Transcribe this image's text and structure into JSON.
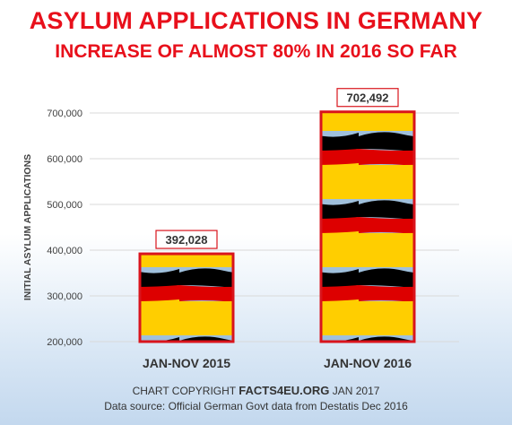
{
  "title": "ASYLUM APPLICATIONS IN GERMANY",
  "subtitle": "INCREASE OF ALMOST 80% IN 2016 SO FAR",
  "footer": {
    "copyright_prefix": "CHART COPYRIGHT",
    "brand": "FACTS4EU.ORG",
    "copyright_suffix": "JAN 2017",
    "source": "Data source: Official German Govt data from Destatis Dec 2016"
  },
  "colors": {
    "title": "#e8101b",
    "bar_border": "#d9141c",
    "flag_black": "#000000",
    "flag_red": "#dd0000",
    "flag_gold": "#ffce00"
  },
  "chart_data": {
    "type": "bar",
    "title": "ASYLUM APPLICATIONS IN GERMANY",
    "subtitle": "INCREASE OF ALMOST 80% IN 2016 SO FAR",
    "ylabel": "INITIAL ASYLUM APPLICATIONS",
    "xlabel": "",
    "categories": [
      "JAN-NOV 2015",
      "JAN-NOV 2016"
    ],
    "values": [
      392028,
      702492
    ],
    "value_labels": [
      "392,028",
      "702,492"
    ],
    "ylim": [
      200000,
      700000
    ],
    "yticks": [
      200000,
      300000,
      400000,
      500000,
      600000,
      700000
    ],
    "ytick_labels": [
      "200,000",
      "300,000",
      "400,000",
      "500,000",
      "600,000",
      "700,000"
    ],
    "grid": true,
    "bar_fill": "german-flag-pattern"
  }
}
